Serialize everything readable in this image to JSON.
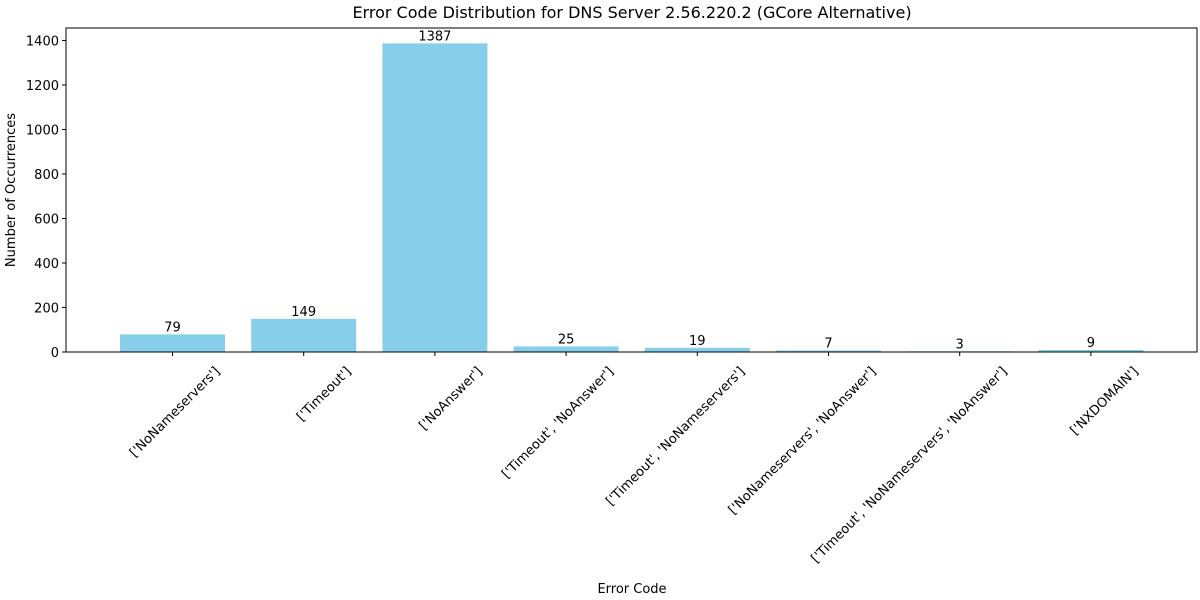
{
  "chart_data": {
    "type": "bar",
    "title": "Error Code Distribution for DNS Server 2.56.220.2 (GCore Alternative)",
    "xlabel": "Error Code",
    "ylabel": "Number of Occurrences",
    "categories": [
      "['NoNameservers']",
      "['Timeout']",
      "['NoAnswer']",
      "['Timeout', 'NoAnswer']",
      "['Timeout', 'NoNameservers']",
      "['NoNameservers', 'NoAnswer']",
      "['Timeout', 'NoNameservers', 'NoAnswer']",
      "['NXDOMAIN']"
    ],
    "values": [
      79,
      149,
      1387,
      25,
      19,
      7,
      3,
      9
    ],
    "ylim": [
      0,
      1456
    ],
    "yticks": [
      0,
      200,
      400,
      600,
      800,
      1000,
      1200,
      1400
    ],
    "grid": false,
    "bar_color": "#87ceeb"
  }
}
